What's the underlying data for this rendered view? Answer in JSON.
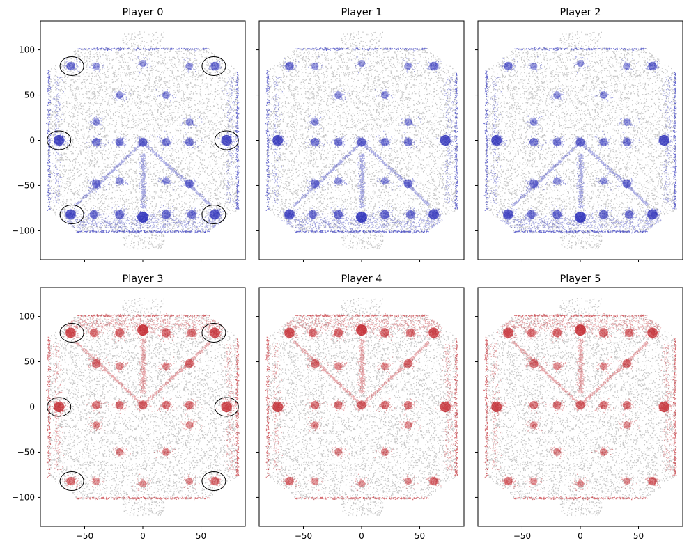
{
  "chart_data": {
    "type": "scatter",
    "layout": {
      "rows": 2,
      "cols": 3,
      "sharex": true,
      "sharey": true
    },
    "xlim": [
      -88,
      88
    ],
    "ylim": [
      -132,
      132
    ],
    "xticks": [
      -50,
      0,
      50
    ],
    "yticks": [
      100,
      50,
      0,
      -50,
      -100
    ],
    "xtick_labels": [
      "−50",
      "0",
      "50"
    ],
    "ytick_labels": [
      "100",
      "50",
      "0",
      "−50",
      "−100"
    ],
    "team_colors": {
      "blue": "#0c10b0",
      "red": "#bb0a12"
    },
    "background_color": "#9a9a9a",
    "arena": {
      "x_extent": [
        -82,
        82
      ],
      "y_extent": [
        -102,
        102
      ],
      "goal_x_extent": [
        -18,
        18
      ],
      "goal_y_extent": [
        -120,
        120
      ]
    },
    "panels": [
      {
        "title": "Player 0",
        "team": "blue",
        "mirror": false,
        "annotated": true
      },
      {
        "title": "Player 1",
        "team": "blue",
        "mirror": false,
        "annotated": false
      },
      {
        "title": "Player 2",
        "team": "blue",
        "mirror": false,
        "annotated": false
      },
      {
        "title": "Player 3",
        "team": "red",
        "mirror": true,
        "annotated": true
      },
      {
        "title": "Player 4",
        "team": "red",
        "mirror": true,
        "annotated": false
      },
      {
        "title": "Player 5",
        "team": "red",
        "mirror": true,
        "annotated": false
      }
    ],
    "annotation_circles": [
      {
        "x": -61,
        "y": 82
      },
      {
        "x": 61,
        "y": 82
      },
      {
        "x": -72,
        "y": 0
      },
      {
        "x": 72,
        "y": 0
      },
      {
        "x": -61,
        "y": -82
      },
      {
        "x": 61,
        "y": -82
      }
    ],
    "hotspots": [
      {
        "x": 0,
        "y": -85,
        "w": 1.0
      },
      {
        "x": -72,
        "y": 0,
        "w": 0.9
      },
      {
        "x": 72,
        "y": 0,
        "w": 0.9
      },
      {
        "x": -62,
        "y": -82,
        "w": 0.85
      },
      {
        "x": 62,
        "y": -82,
        "w": 0.85
      },
      {
        "x": -62,
        "y": 82,
        "w": 0.55
      },
      {
        "x": 62,
        "y": 82,
        "w": 0.55
      },
      {
        "x": 0,
        "y": -2,
        "w": 0.6
      },
      {
        "x": -20,
        "y": -2,
        "w": 0.5
      },
      {
        "x": 20,
        "y": -2,
        "w": 0.5
      },
      {
        "x": -40,
        "y": -2,
        "w": 0.5
      },
      {
        "x": 40,
        "y": -2,
        "w": 0.5
      },
      {
        "x": -40,
        "y": -48,
        "w": 0.55
      },
      {
        "x": 40,
        "y": -48,
        "w": 0.55
      },
      {
        "x": -20,
        "y": -82,
        "w": 0.6
      },
      {
        "x": 20,
        "y": -82,
        "w": 0.6
      },
      {
        "x": -42,
        "y": -82,
        "w": 0.55
      },
      {
        "x": 42,
        "y": -82,
        "w": 0.55
      },
      {
        "x": -40,
        "y": 20,
        "w": 0.35
      },
      {
        "x": 40,
        "y": 20,
        "w": 0.35
      },
      {
        "x": -20,
        "y": 50,
        "w": 0.35
      },
      {
        "x": 20,
        "y": 50,
        "w": 0.35
      },
      {
        "x": 0,
        "y": 85,
        "w": 0.3
      },
      {
        "x": -40,
        "y": 82,
        "w": 0.3
      },
      {
        "x": 40,
        "y": 82,
        "w": 0.3
      },
      {
        "x": -20,
        "y": -45,
        "w": 0.35
      },
      {
        "x": 20,
        "y": -45,
        "w": 0.35
      }
    ]
  }
}
